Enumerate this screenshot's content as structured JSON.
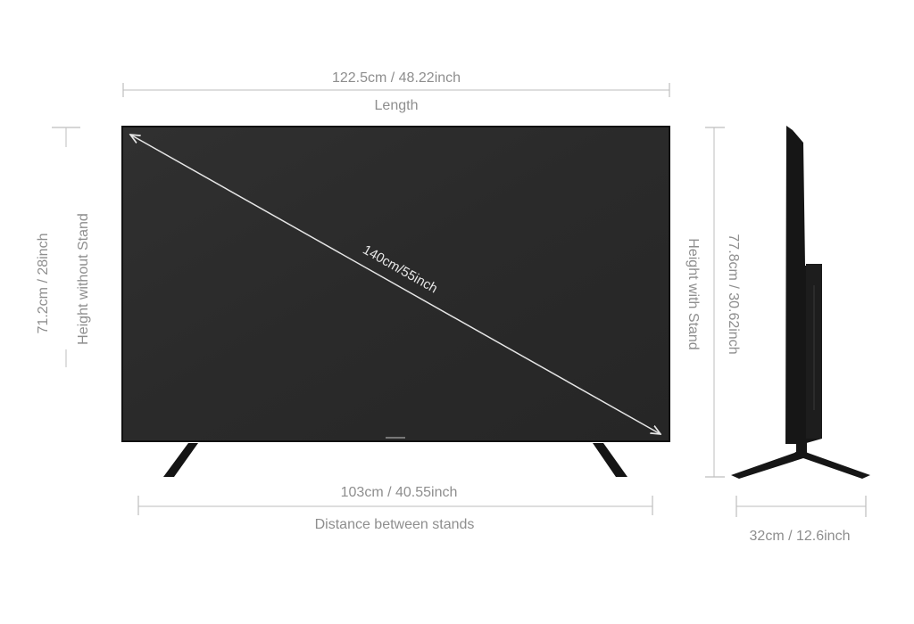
{
  "dimensions": {
    "length_value": "122.5cm / 48.22inch",
    "length_label": "Length",
    "diagonal_value": "140cm/55inch",
    "height_without_stand_value": "71.2cm / 28inch",
    "height_without_stand_label": "Height without Stand",
    "height_with_stand_value": "77.8cm / 30.62inch",
    "height_with_stand_label": "Height with Stand",
    "stand_distance_value": "103cm / 40.55inch",
    "stand_distance_label": "Distance between stands",
    "depth_value": "32cm / 12.6inch"
  },
  "colors": {
    "screen": "#2a2a2a",
    "bezel": "#111111",
    "dimension_text": "#8e8e8e",
    "dimension_line": "#c9c9c9",
    "diagonal_line": "#e6e6e6"
  }
}
